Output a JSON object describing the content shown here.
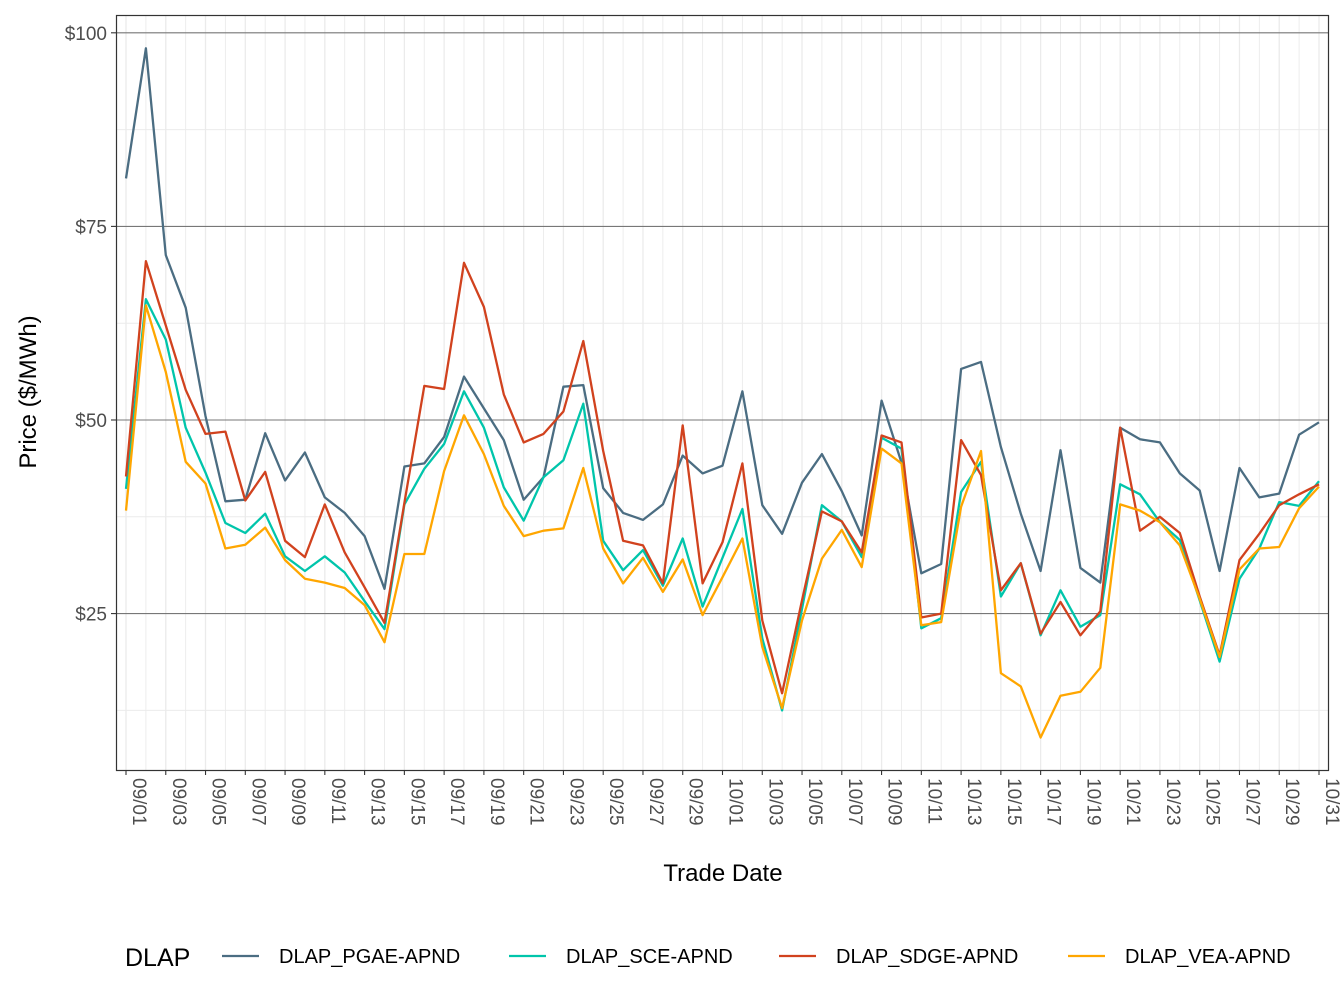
{
  "chart_data": {
    "type": "line",
    "xlabel": "Trade Date",
    "ylabel": "Price ($/MWh)",
    "ylim": [
      4.8,
      102.3
    ],
    "y_ticks": [
      25,
      50,
      75,
      100
    ],
    "y_tick_labels": [
      "$25",
      "$50",
      "$75",
      "$100"
    ],
    "grid": true,
    "legend": {
      "title": "DLAP",
      "position": "bottom"
    },
    "x": [
      "09/01",
      "09/02",
      "09/03",
      "09/04",
      "09/05",
      "09/06",
      "09/07",
      "09/08",
      "09/09",
      "09/10",
      "09/11",
      "09/12",
      "09/13",
      "09/14",
      "09/15",
      "09/16",
      "09/17",
      "09/18",
      "09/19",
      "09/20",
      "09/21",
      "09/22",
      "09/23",
      "09/24",
      "09/25",
      "09/26",
      "09/27",
      "09/28",
      "09/29",
      "09/30",
      "10/01",
      "10/02",
      "10/03",
      "10/04",
      "10/05",
      "10/06",
      "10/07",
      "10/08",
      "10/09",
      "10/10",
      "10/11",
      "10/12",
      "10/13",
      "10/14",
      "10/15",
      "10/16",
      "10/17",
      "10/18",
      "10/19",
      "10/20",
      "10/21",
      "10/22",
      "10/23",
      "10/24",
      "10/25",
      "10/26",
      "10/27",
      "10/28",
      "10/29",
      "10/30",
      "10/31"
    ],
    "x_tick_labels": [
      "09/01",
      "09/03",
      "09/05",
      "09/07",
      "09/09",
      "09/11",
      "09/13",
      "09/15",
      "09/17",
      "09/19",
      "09/21",
      "09/23",
      "09/25",
      "09/27",
      "09/29",
      "10/01",
      "10/03",
      "10/05",
      "10/07",
      "10/09",
      "10/11",
      "10/13",
      "10/15",
      "10/17",
      "10/19",
      "10/21",
      "10/23",
      "10/25",
      "10/27",
      "10/29",
      "10/31"
    ],
    "series": [
      {
        "name": "DLAP_PGAE-APND",
        "color": "#4b6d82",
        "values": [
          81.2,
          98.0,
          71.3,
          64.5,
          50.5,
          39.5,
          39.7,
          48.3,
          42.2,
          45.8,
          40.0,
          38.0,
          35.0,
          28.2,
          44.0,
          44.4,
          47.8,
          55.6,
          51.5,
          47.4,
          39.7,
          42.6,
          54.3,
          54.5,
          41.2,
          38.0,
          37.1,
          39.1,
          45.4,
          43.1,
          44.1,
          53.7,
          39.0,
          35.3,
          41.9,
          45.6,
          40.8,
          35.1,
          52.5,
          44.5,
          30.2,
          31.4,
          56.6,
          57.5,
          46.5,
          37.9,
          30.5,
          46.1,
          30.9,
          29.0,
          49.0,
          47.5,
          47.1,
          43.1,
          40.9,
          30.5,
          43.8,
          40.0,
          40.5,
          48.1,
          49.7
        ]
      },
      {
        "name": "DLAP_SCE-APND",
        "color": "#00c5ab",
        "values": [
          41.1,
          65.6,
          60.4,
          49.0,
          43.2,
          36.7,
          35.4,
          37.9,
          32.4,
          30.5,
          32.4,
          30.3,
          26.6,
          23.0,
          39.1,
          43.7,
          46.9,
          53.7,
          49.0,
          41.3,
          37.0,
          42.6,
          44.8,
          52.1,
          34.4,
          30.6,
          33.2,
          28.6,
          34.7,
          25.9,
          32.2,
          38.5,
          21.8,
          12.5,
          25.6,
          39.0,
          36.9,
          32.3,
          47.7,
          46.3,
          23.1,
          24.4,
          40.7,
          44.6,
          27.2,
          31.5,
          22.2,
          28.0,
          23.3,
          24.8,
          41.7,
          40.4,
          36.8,
          34.5,
          26.7,
          18.8,
          29.5,
          33.4,
          39.4,
          38.9,
          42.1
        ]
      },
      {
        "name": "DLAP_SDGE-APND",
        "color": "#d1421e",
        "values": [
          42.7,
          70.5,
          62.2,
          53.9,
          48.2,
          48.5,
          39.6,
          43.3,
          34.4,
          32.3,
          39.1,
          32.9,
          28.4,
          23.8,
          39.3,
          54.4,
          54.0,
          70.3,
          64.6,
          53.3,
          47.1,
          48.2,
          51.1,
          60.2,
          46.0,
          34.4,
          33.8,
          28.9,
          49.3,
          28.9,
          34.2,
          44.4,
          24.1,
          14.7,
          26.7,
          38.2,
          36.9,
          32.9,
          48.0,
          47.1,
          24.5,
          25.0,
          47.4,
          42.9,
          28.0,
          31.5,
          22.4,
          26.5,
          22.2,
          25.3,
          49.0,
          35.7,
          37.5,
          35.4,
          27.2,
          19.6,
          31.9,
          35.3,
          39.0,
          40.4,
          41.7
        ]
      },
      {
        "name": "DLAP_VEA-APND",
        "color": "#ffa600",
        "values": [
          38.3,
          64.8,
          56.2,
          44.6,
          41.8,
          33.4,
          33.9,
          36.1,
          31.9,
          29.5,
          29.0,
          28.3,
          26.1,
          21.3,
          32.7,
          32.7,
          43.4,
          50.6,
          45.6,
          38.9,
          35.0,
          35.7,
          36.0,
          43.8,
          33.4,
          28.9,
          32.2,
          27.8,
          32.0,
          24.8,
          29.7,
          34.7,
          20.7,
          12.8,
          24.1,
          32.1,
          35.8,
          31.0,
          46.3,
          44.4,
          23.5,
          23.9,
          38.8,
          46.0,
          17.3,
          15.6,
          9.0,
          14.4,
          14.9,
          18.0,
          39.1,
          38.3,
          36.8,
          33.8,
          26.9,
          19.4,
          30.7,
          33.4,
          33.6,
          38.6,
          41.4
        ]
      }
    ]
  }
}
